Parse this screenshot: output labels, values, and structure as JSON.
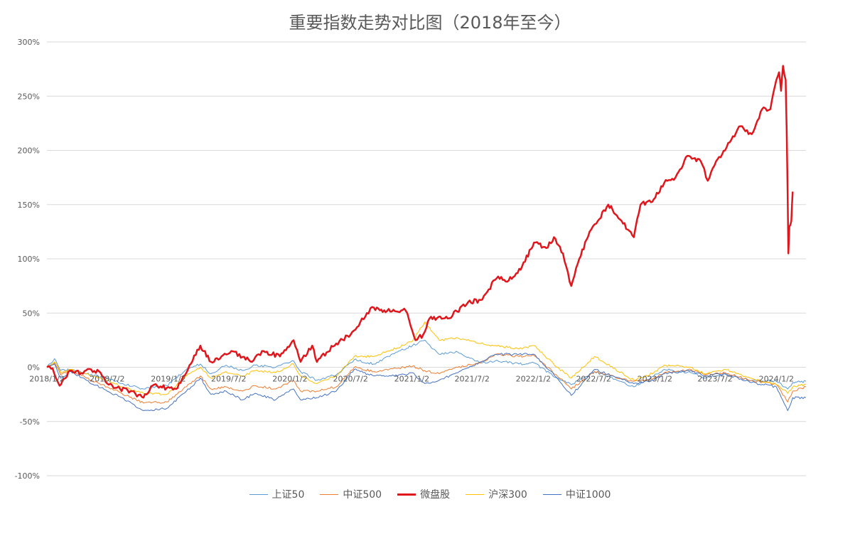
{
  "chart_data": {
    "type": "line",
    "title": "重要指数走势对比图（2018年至今）",
    "xlabel": "",
    "ylabel": "",
    "ylim": [
      -100,
      300
    ],
    "yticks": [
      300,
      250,
      200,
      150,
      100,
      50,
      0,
      -50,
      -100
    ],
    "ytick_labels": [
      "300%",
      "250%",
      "200%",
      "150%",
      "100%",
      "50%",
      "0%",
      "-50%",
      "-100%"
    ],
    "xlim": [
      "2018-01-02",
      "2024-03-31"
    ],
    "xticks": [
      "2018-01-02",
      "2018-07-02",
      "2019-01-02",
      "2019-07-02",
      "2020-01-02",
      "2020-07-02",
      "2021-01-02",
      "2021-07-02",
      "2022-01-02",
      "2022-07-02",
      "2023-01-02",
      "2023-07-02",
      "2024-01-02"
    ],
    "xtick_labels": [
      "2018/1/2",
      "2018/7/2",
      "2019/1/2",
      "2019/7/2",
      "2020/1/2",
      "2020/7/2",
      "2021/1/2",
      "2021/7/2",
      "2022/1/2",
      "2022/7/2",
      "2023/1/2",
      "2023/7/2",
      "2024/1/2"
    ],
    "grid": true,
    "legend_position": "bottom",
    "series": [
      {
        "name": "上证50",
        "color": "#5B9BD5",
        "width": 1,
        "points": [
          [
            "2018-01-02",
            0
          ],
          [
            "2018-01-25",
            8
          ],
          [
            "2018-02-12",
            -3
          ],
          [
            "2018-03-15",
            -2
          ],
          [
            "2018-05-01",
            -6
          ],
          [
            "2018-07-02",
            -10
          ],
          [
            "2018-08-15",
            -15
          ],
          [
            "2018-10-19",
            -20
          ],
          [
            "2018-12-28",
            -17
          ],
          [
            "2019-02-25",
            -2
          ],
          [
            "2019-04-08",
            3
          ],
          [
            "2019-05-10",
            -6
          ],
          [
            "2019-06-24",
            2
          ],
          [
            "2019-08-12",
            -3
          ],
          [
            "2019-09-20",
            2
          ],
          [
            "2019-11-20",
            0
          ],
          [
            "2020-01-13",
            6
          ],
          [
            "2020-02-03",
            -4
          ],
          [
            "2020-03-23",
            -12
          ],
          [
            "2020-05-20",
            -7
          ],
          [
            "2020-07-13",
            7
          ],
          [
            "2020-09-10",
            3
          ],
          [
            "2020-11-20",
            14
          ],
          [
            "2021-01-04",
            20
          ],
          [
            "2021-02-10",
            25
          ],
          [
            "2021-03-25",
            12
          ],
          [
            "2021-05-20",
            14
          ],
          [
            "2021-07-28",
            4
          ],
          [
            "2021-09-10",
            6
          ],
          [
            "2021-11-20",
            3
          ],
          [
            "2022-01-04",
            4
          ],
          [
            "2022-03-15",
            -10
          ],
          [
            "2022-04-26",
            -16
          ],
          [
            "2022-07-05",
            -4
          ],
          [
            "2022-10-31",
            -18
          ],
          [
            "2022-12-30",
            -8
          ],
          [
            "2023-01-30",
            -2
          ],
          [
            "2023-04-20",
            -5
          ],
          [
            "2023-06-01",
            -10
          ],
          [
            "2023-08-01",
            -6
          ],
          [
            "2023-10-20",
            -12
          ],
          [
            "2024-01-02",
            -13
          ],
          [
            "2024-02-05",
            -20
          ],
          [
            "2024-02-20",
            -14
          ],
          [
            "2024-03-31",
            -13
          ]
        ]
      },
      {
        "name": "中证500",
        "color": "#ED7D31",
        "width": 1,
        "points": [
          [
            "2018-01-02",
            0
          ],
          [
            "2018-01-25",
            4
          ],
          [
            "2018-02-12",
            -7
          ],
          [
            "2018-03-15",
            -3
          ],
          [
            "2018-05-01",
            -10
          ],
          [
            "2018-07-02",
            -18
          ],
          [
            "2018-08-15",
            -24
          ],
          [
            "2018-10-19",
            -33
          ],
          [
            "2018-12-28",
            -32
          ],
          [
            "2019-02-25",
            -18
          ],
          [
            "2019-04-08",
            -8
          ],
          [
            "2019-05-10",
            -20
          ],
          [
            "2019-06-24",
            -18
          ],
          [
            "2019-08-12",
            -22
          ],
          [
            "2019-09-20",
            -17
          ],
          [
            "2019-11-20",
            -20
          ],
          [
            "2020-01-13",
            -12
          ],
          [
            "2020-02-03",
            -22
          ],
          [
            "2020-03-23",
            -22
          ],
          [
            "2020-05-20",
            -18
          ],
          [
            "2020-07-13",
            0
          ],
          [
            "2020-09-10",
            -4
          ],
          [
            "2020-11-20",
            -1
          ],
          [
            "2021-01-04",
            1
          ],
          [
            "2021-02-10",
            -3
          ],
          [
            "2021-03-25",
            -6
          ],
          [
            "2021-05-20",
            0
          ],
          [
            "2021-07-28",
            4
          ],
          [
            "2021-09-10",
            12
          ],
          [
            "2021-11-20",
            10
          ],
          [
            "2022-01-04",
            11
          ],
          [
            "2022-03-15",
            -8
          ],
          [
            "2022-04-26",
            -20
          ],
          [
            "2022-07-05",
            -4
          ],
          [
            "2022-10-31",
            -13
          ],
          [
            "2022-12-30",
            -10
          ],
          [
            "2023-01-30",
            -5
          ],
          [
            "2023-04-20",
            -2
          ],
          [
            "2023-06-01",
            -7
          ],
          [
            "2023-08-01",
            -5
          ],
          [
            "2023-10-20",
            -12
          ],
          [
            "2024-01-02",
            -16
          ],
          [
            "2024-02-05",
            -32
          ],
          [
            "2024-02-20",
            -22
          ],
          [
            "2024-03-31",
            -18
          ]
        ]
      },
      {
        "name": "微盘股",
        "color": "#E0161C",
        "width": 2.5,
        "points": [
          [
            "2018-01-02",
            0
          ],
          [
            "2018-01-19",
            -1
          ],
          [
            "2018-02-09",
            -17
          ],
          [
            "2018-03-12",
            -3
          ],
          [
            "2018-04-20",
            -6
          ],
          [
            "2018-05-15",
            -2
          ],
          [
            "2018-06-12",
            -5
          ],
          [
            "2018-07-02",
            -15
          ],
          [
            "2018-08-10",
            -20
          ],
          [
            "2018-09-10",
            -22
          ],
          [
            "2018-10-19",
            -28
          ],
          [
            "2018-11-20",
            -16
          ],
          [
            "2018-12-28",
            -19
          ],
          [
            "2019-01-25",
            -20
          ],
          [
            "2019-02-25",
            -5
          ],
          [
            "2019-04-08",
            20
          ],
          [
            "2019-05-10",
            5
          ],
          [
            "2019-06-10",
            10
          ],
          [
            "2019-07-10",
            15
          ],
          [
            "2019-09-10",
            5
          ],
          [
            "2019-10-10",
            15
          ],
          [
            "2019-12-03",
            10
          ],
          [
            "2020-01-13",
            25
          ],
          [
            "2020-02-03",
            5
          ],
          [
            "2020-03-09",
            20
          ],
          [
            "2020-03-23",
            5
          ],
          [
            "2020-05-20",
            22
          ],
          [
            "2020-07-02",
            30
          ],
          [
            "2020-08-20",
            50
          ],
          [
            "2020-09-10",
            55
          ],
          [
            "2020-10-20",
            52
          ],
          [
            "2020-12-15",
            52
          ],
          [
            "2021-01-13",
            25
          ],
          [
            "2021-02-05",
            30
          ],
          [
            "2021-02-24",
            45
          ],
          [
            "2021-04-20",
            45
          ],
          [
            "2021-06-20",
            60
          ],
          [
            "2021-07-28",
            62
          ],
          [
            "2021-09-14",
            82
          ],
          [
            "2021-10-20",
            80
          ],
          [
            "2021-11-25",
            90
          ],
          [
            "2022-01-04",
            115
          ],
          [
            "2022-02-10",
            110
          ],
          [
            "2022-03-05",
            120
          ],
          [
            "2022-04-01",
            105
          ],
          [
            "2022-04-26",
            75
          ],
          [
            "2022-05-20",
            100
          ],
          [
            "2022-06-20",
            125
          ],
          [
            "2022-07-15",
            135
          ],
          [
            "2022-08-15",
            150
          ],
          [
            "2022-09-10",
            140
          ],
          [
            "2022-10-31",
            120
          ],
          [
            "2022-11-20",
            150
          ],
          [
            "2022-12-30",
            155
          ],
          [
            "2023-01-30",
            170
          ],
          [
            "2023-03-05",
            175
          ],
          [
            "2023-04-10",
            195
          ],
          [
            "2023-05-20",
            190
          ],
          [
            "2023-06-10",
            172
          ],
          [
            "2023-07-05",
            190
          ],
          [
            "2023-08-01",
            200
          ],
          [
            "2023-09-12",
            222
          ],
          [
            "2023-10-20",
            215
          ],
          [
            "2023-11-20",
            238
          ],
          [
            "2023-12-15",
            238
          ],
          [
            "2024-01-02",
            265
          ],
          [
            "2024-01-10",
            272
          ],
          [
            "2024-01-16",
            255
          ],
          [
            "2024-01-22",
            278
          ],
          [
            "2024-01-30",
            265
          ],
          [
            "2024-02-02",
            220
          ],
          [
            "2024-02-05",
            160
          ],
          [
            "2024-02-07",
            105
          ],
          [
            "2024-02-10",
            130
          ],
          [
            "2024-02-16",
            135
          ],
          [
            "2024-02-20",
            162
          ]
        ]
      },
      {
        "name": "沪深300",
        "color": "#FFC000",
        "width": 1,
        "points": [
          [
            "2018-01-02",
            0
          ],
          [
            "2018-01-25",
            5
          ],
          [
            "2018-02-12",
            -5
          ],
          [
            "2018-03-15",
            -2
          ],
          [
            "2018-05-01",
            -6
          ],
          [
            "2018-07-02",
            -12
          ],
          [
            "2018-08-15",
            -18
          ],
          [
            "2018-10-19",
            -24
          ],
          [
            "2018-12-28",
            -25
          ],
          [
            "2019-02-25",
            -8
          ],
          [
            "2019-04-08",
            0
          ],
          [
            "2019-05-10",
            -10
          ],
          [
            "2019-06-24",
            -4
          ],
          [
            "2019-08-12",
            -8
          ],
          [
            "2019-09-20",
            -3
          ],
          [
            "2019-11-20",
            -5
          ],
          [
            "2020-01-13",
            3
          ],
          [
            "2020-02-03",
            -8
          ],
          [
            "2020-03-23",
            -15
          ],
          [
            "2020-05-20",
            -8
          ],
          [
            "2020-07-13",
            10
          ],
          [
            "2020-09-10",
            10
          ],
          [
            "2020-11-20",
            18
          ],
          [
            "2021-01-04",
            24
          ],
          [
            "2021-02-10",
            42
          ],
          [
            "2021-03-25",
            25
          ],
          [
            "2021-05-20",
            27
          ],
          [
            "2021-07-28",
            22
          ],
          [
            "2021-09-10",
            20
          ],
          [
            "2021-11-20",
            17
          ],
          [
            "2022-01-04",
            20
          ],
          [
            "2022-03-15",
            0
          ],
          [
            "2022-04-26",
            -10
          ],
          [
            "2022-07-05",
            10
          ],
          [
            "2022-10-31",
            -12
          ],
          [
            "2022-12-30",
            -5
          ],
          [
            "2023-01-30",
            2
          ],
          [
            "2023-04-20",
            0
          ],
          [
            "2023-06-01",
            -6
          ],
          [
            "2023-08-01",
            -2
          ],
          [
            "2023-10-20",
            -10
          ],
          [
            "2024-01-02",
            -16
          ],
          [
            "2024-02-05",
            -24
          ],
          [
            "2024-02-20",
            -18
          ],
          [
            "2024-03-31",
            -16
          ]
        ]
      },
      {
        "name": "中证1000",
        "color": "#4472C4",
        "width": 1,
        "points": [
          [
            "2018-01-02",
            0
          ],
          [
            "2018-01-25",
            3
          ],
          [
            "2018-02-12",
            -10
          ],
          [
            "2018-03-15",
            -4
          ],
          [
            "2018-05-01",
            -12
          ],
          [
            "2018-07-02",
            -22
          ],
          [
            "2018-08-15",
            -28
          ],
          [
            "2018-10-19",
            -40
          ],
          [
            "2018-12-28",
            -38
          ],
          [
            "2019-02-25",
            -22
          ],
          [
            "2019-04-08",
            -10
          ],
          [
            "2019-05-10",
            -25
          ],
          [
            "2019-06-24",
            -22
          ],
          [
            "2019-08-12",
            -30
          ],
          [
            "2019-09-20",
            -24
          ],
          [
            "2019-11-20",
            -30
          ],
          [
            "2020-01-13",
            -20
          ],
          [
            "2020-02-03",
            -30
          ],
          [
            "2020-03-23",
            -28
          ],
          [
            "2020-05-20",
            -22
          ],
          [
            "2020-07-13",
            -2
          ],
          [
            "2020-09-10",
            -8
          ],
          [
            "2020-11-20",
            -8
          ],
          [
            "2021-01-04",
            -5
          ],
          [
            "2021-02-10",
            -15
          ],
          [
            "2021-03-25",
            -12
          ],
          [
            "2021-05-20",
            -5
          ],
          [
            "2021-07-28",
            5
          ],
          [
            "2021-09-10",
            12
          ],
          [
            "2021-11-20",
            12
          ],
          [
            "2022-01-04",
            12
          ],
          [
            "2022-03-15",
            -10
          ],
          [
            "2022-04-26",
            -26
          ],
          [
            "2022-07-05",
            -2
          ],
          [
            "2022-10-31",
            -15
          ],
          [
            "2022-12-30",
            -12
          ],
          [
            "2023-01-30",
            -6
          ],
          [
            "2023-04-20",
            -3
          ],
          [
            "2023-06-01",
            -8
          ],
          [
            "2023-08-01",
            -6
          ],
          [
            "2023-10-20",
            -14
          ],
          [
            "2024-01-02",
            -18
          ],
          [
            "2024-02-05",
            -40
          ],
          [
            "2024-02-20",
            -28
          ],
          [
            "2024-03-31",
            -28
          ]
        ]
      }
    ]
  }
}
